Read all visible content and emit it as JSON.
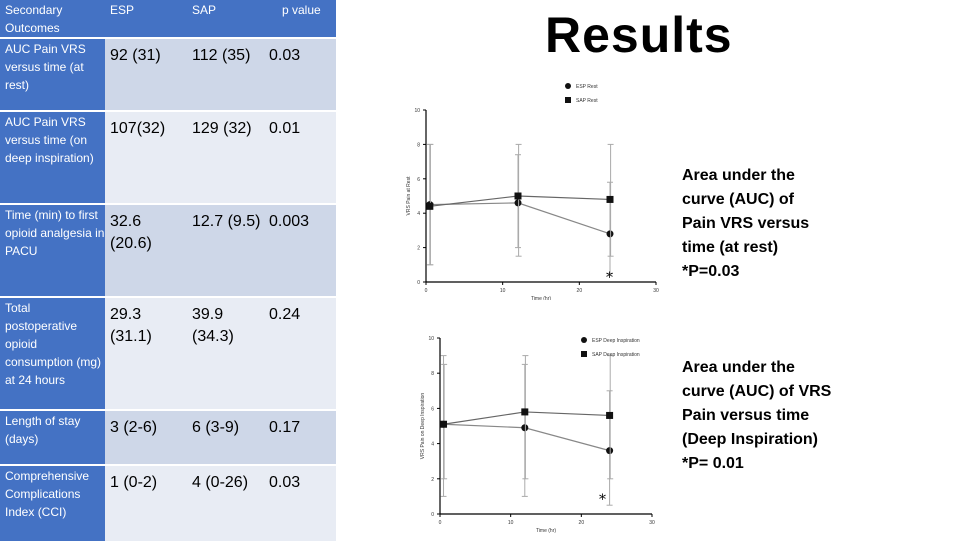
{
  "title": "Results",
  "table": {
    "headers": [
      "Secondary Outcomes",
      "ESP",
      "SAP",
      "p value"
    ],
    "rows": [
      {
        "label": "AUC Pain VRS versus time (at rest)",
        "esp": "92 (31)",
        "sap": "112 (35)",
        "p": "0.03"
      },
      {
        "label": "AUC Pain VRS versus time (on deep inspiration)",
        "esp": "107(32)",
        "sap": "129 (32)",
        "p": "0.01"
      },
      {
        "label": "Time (min) to first opioid analgesia in PACU",
        "esp": "32.6 (20.6)",
        "sap": "12.7 (9.5)",
        "p": "0.003"
      },
      {
        "label": "Total postoperative opioid consumption (mg) at 24 hours",
        "esp": "29.3 (31.1)",
        "sap": "39.9 (34.3)",
        "p": "0.24"
      },
      {
        "label": "Length of stay (days)",
        "esp": "3 (2-6)",
        "sap": "6 (3-9)",
        "p": "0.17"
      },
      {
        "label": "Comprehensive Complications Index (CCI)",
        "esp": "1 (0-2)",
        "sap": "4 (0-26)",
        "p": "0.03"
      }
    ]
  },
  "notes": [
    "Area under the curve (AUC) of Pain VRS versus time (at rest) *P=0.03",
    "Area under the curve (AUC) of VRS Pain versus time (Deep Inspiration) *P= 0.01"
  ],
  "chart_data": [
    {
      "type": "line",
      "xlabel": "Time (hr)",
      "ylabel": "VRS Pain at Rest",
      "xlim": [
        0,
        30
      ],
      "ylim": [
        0,
        10
      ],
      "xticks": [
        0,
        10,
        20,
        30
      ],
      "yticks": [
        0,
        2,
        4,
        6,
        8,
        10
      ],
      "x": [
        0.5,
        12,
        24
      ],
      "series": [
        {
          "name": "ESP Rest",
          "marker": "circle",
          "values": [
            4.5,
            4.6,
            2.8
          ],
          "err": [
            [
              1.0,
              8.0
            ],
            [
              2.0,
              7.4
            ],
            [
              0.5,
              5.8
            ]
          ]
        },
        {
          "name": "SAP Rest",
          "marker": "square",
          "values": [
            4.4,
            5.0,
            4.8
          ],
          "err": [
            [
              1.0,
              8.0
            ],
            [
              1.5,
              8.0
            ],
            [
              1.5,
              8.0
            ]
          ]
        }
      ],
      "annotation": "*"
    },
    {
      "type": "line",
      "xlabel": "Time (hr)",
      "ylabel": "VRS Pain on Deep Inspiration",
      "xlim": [
        0,
        30
      ],
      "ylim": [
        0,
        10
      ],
      "xticks": [
        0,
        10,
        20,
        30
      ],
      "yticks": [
        0,
        2,
        4,
        6,
        8,
        10
      ],
      "x": [
        0.5,
        12,
        24
      ],
      "series": [
        {
          "name": "ESP Deep Inspiration",
          "marker": "circle",
          "values": [
            5.1,
            4.9,
            3.6
          ],
          "err": [
            [
              1.0,
              9.0
            ],
            [
              1.0,
              8.5
            ],
            [
              0.5,
              7.0
            ]
          ]
        },
        {
          "name": "SAP Deep Inspiration",
          "marker": "square",
          "values": [
            5.1,
            5.8,
            5.6
          ],
          "err": [
            [
              2.0,
              8.5
            ],
            [
              2.0,
              9.0
            ],
            [
              2.0,
              9.0
            ]
          ]
        }
      ],
      "annotation": "*"
    }
  ]
}
